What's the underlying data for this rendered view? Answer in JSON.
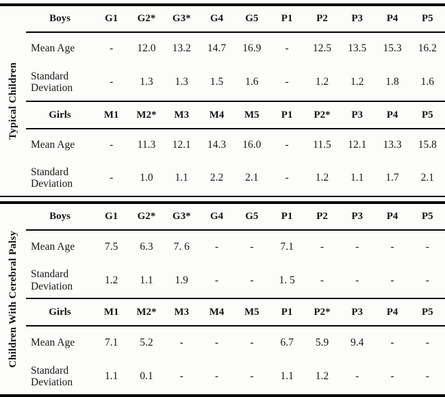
{
  "colors": {
    "ink": "#161616",
    "rule": "#000000",
    "background": "#fcfcfa"
  },
  "sections": [
    {
      "side_label": "Typical Children",
      "groups": [
        {
          "header_label": "Boys",
          "columns": [
            "G1",
            "G2*",
            "G3*",
            "G4",
            "G5",
            "P1",
            "P2",
            "P3",
            "P4",
            "P5"
          ],
          "rows": [
            {
              "label": "Mean Age",
              "values": [
                "-",
                "12.0",
                "13.2",
                "14.7",
                "16.9",
                "-",
                "12.5",
                "13.5",
                "15.3",
                "16.2"
              ]
            },
            {
              "label": "Standard Deviation",
              "values": [
                "-",
                "1.3",
                "1.3",
                "1.5",
                "1.6",
                "-",
                "1.2",
                "1.2",
                "1.8",
                "1.6"
              ]
            }
          ]
        },
        {
          "header_label": "Girls",
          "columns": [
            "M1",
            "M2*",
            "M3",
            "M4",
            "M5",
            "P1",
            "P2*",
            "P3",
            "P4",
            "P5"
          ],
          "rows": [
            {
              "label": "Mean Age",
              "values": [
                "-",
                "11.3",
                "12.1",
                "14.3",
                "16.0",
                "-",
                "11.5",
                "12.1",
                "13.3",
                "15.8"
              ]
            },
            {
              "label": "Standard Deviation",
              "values": [
                "-",
                "1.0",
                "1.1",
                "2.2",
                "2.1",
                "-",
                "1.2",
                "1.1",
                "1.7",
                "2.1"
              ]
            }
          ]
        }
      ]
    },
    {
      "side_label": "Children With Cerebral Palsy",
      "groups": [
        {
          "header_label": "Boys",
          "columns": [
            "G1",
            "G2*",
            "G3*",
            "G4",
            "G5",
            "P1",
            "P2",
            "P3",
            "P4",
            "P5"
          ],
          "rows": [
            {
              "label": "Mean Age",
              "values": [
                "7.5",
                "6.3",
                "7. 6",
                "-",
                "-",
                "7.1",
                "-",
                "-",
                "-",
                "-"
              ]
            },
            {
              "label": "Standard Deviation",
              "values": [
                "1.2",
                "1.1",
                "1.9",
                "-",
                "-",
                "1. 5",
                "-",
                "-",
                "-",
                "-"
              ]
            }
          ]
        },
        {
          "header_label": "Girls",
          "columns": [
            "M1",
            "M2*",
            "M3",
            "M4",
            "M5",
            "P1",
            "P2*",
            "P3",
            "P4",
            "P5"
          ],
          "rows": [
            {
              "label": "Mean Age",
              "values": [
                "7.1",
                "5.2",
                "-",
                "-",
                "-",
                "6.7",
                "5.9",
                "9.4",
                "-",
                "-"
              ]
            },
            {
              "label": "Standard Deviation",
              "values": [
                "1.1",
                "0.1",
                "-",
                "-",
                "-",
                "1.1",
                "1.2",
                "-",
                "-",
                "-"
              ]
            }
          ]
        }
      ]
    }
  ]
}
